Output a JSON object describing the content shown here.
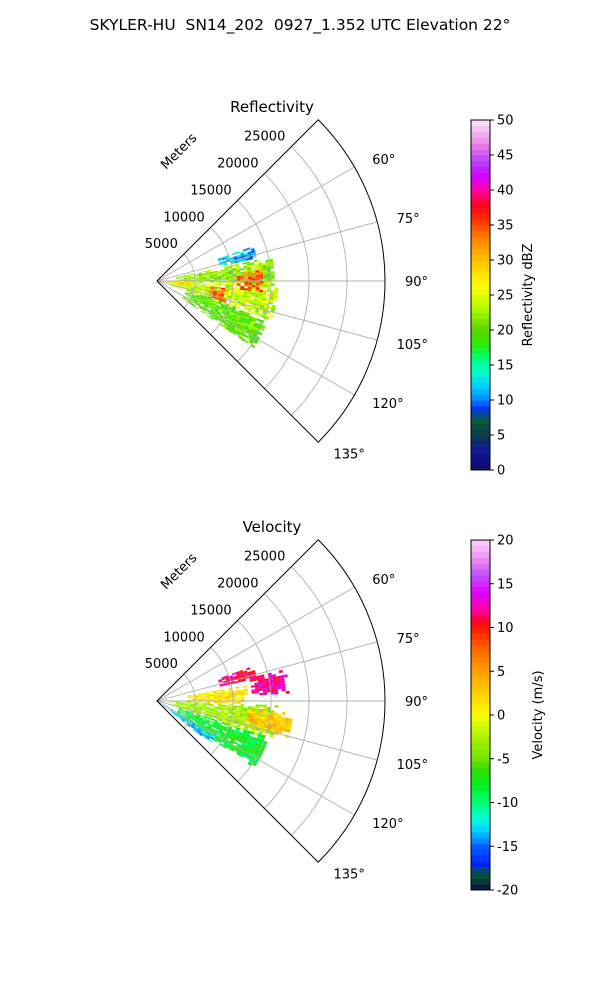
{
  "figure": {
    "title": "SKYLER-HU  SN14_202  0927_1.352 UTC Elevation 22°"
  },
  "chart_data": [
    {
      "type": "heatmap",
      "subtype": "polar-ppi-sector",
      "title": "Reflectivity",
      "range_label": "Meters",
      "range_ticks": [
        5000,
        10000,
        15000,
        20000,
        25000
      ],
      "range_max": 30000,
      "azimuth_range_deg": [
        45,
        135
      ],
      "azimuth_ticks": [
        60,
        75,
        90,
        105,
        120,
        135
      ],
      "azimuth_tick_labels": [
        "60°",
        "75°",
        "90°",
        "105°",
        "120°",
        "135°"
      ],
      "grid": true,
      "colorbar": {
        "label": "Reflectivity dBZ",
        "min": 0,
        "max": 50,
        "ticks": [
          0,
          5,
          10,
          15,
          20,
          25,
          30,
          35,
          40,
          45,
          50
        ],
        "colormap": "pyart_NWSRef"
      },
      "echo_regions": [
        {
          "az": [
            70,
            77
          ],
          "range": [
            8500,
            13500
          ],
          "value": 12
        },
        {
          "az": [
            78,
            92
          ],
          "range": [
            2500,
            15500
          ],
          "value": 22
        },
        {
          "az": [
            92,
            108
          ],
          "range": [
            1500,
            16000
          ],
          "value": 24
        },
        {
          "az": [
            108,
            124
          ],
          "range": [
            4000,
            15500
          ],
          "value": 20
        },
        {
          "az": [
            96,
            108
          ],
          "range": [
            7000,
            9500
          ],
          "value": 35
        },
        {
          "az": [
            84,
            95
          ],
          "range": [
            10500,
            14000
          ],
          "value": 34
        },
        {
          "az": [
            88,
            100
          ],
          "range": [
            0,
            4500
          ],
          "value": 28
        }
      ]
    },
    {
      "type": "heatmap",
      "subtype": "polar-ppi-sector",
      "title": "Velocity",
      "range_label": "Meters",
      "range_ticks": [
        5000,
        10000,
        15000,
        20000,
        25000
      ],
      "range_max": 30000,
      "azimuth_range_deg": [
        45,
        135
      ],
      "azimuth_ticks": [
        60,
        75,
        90,
        105,
        120,
        135
      ],
      "azimuth_tick_labels": [
        "60°",
        "75°",
        "90°",
        "105°",
        "120°",
        "135°"
      ],
      "grid": true,
      "colorbar": {
        "label": "Velocity (m/s)",
        "min": -20,
        "max": 20,
        "ticks": [
          -20,
          -15,
          -10,
          -5,
          0,
          5,
          10,
          15,
          20
        ],
        "colormap": "pyart_NWSVel"
      },
      "echo_regions": [
        {
          "az": [
            70,
            77
          ],
          "range": [
            8500,
            13500
          ],
          "value": 11
        },
        {
          "az": [
            76,
            86
          ],
          "range": [
            12500,
            17500
          ],
          "value": 12
        },
        {
          "az": [
            80,
            92
          ],
          "range": [
            4000,
            12000
          ],
          "value": 1
        },
        {
          "az": [
            92,
            108
          ],
          "range": [
            1500,
            16000
          ],
          "value": -3
        },
        {
          "az": [
            108,
            124
          ],
          "range": [
            3000,
            15500
          ],
          "value": -8
        },
        {
          "az": [
            120,
            128
          ],
          "range": [
            1000,
            9000
          ],
          "value": -13
        },
        {
          "az": [
            95,
            105
          ],
          "range": [
            12000,
            18000
          ],
          "value": 3
        }
      ]
    }
  ]
}
